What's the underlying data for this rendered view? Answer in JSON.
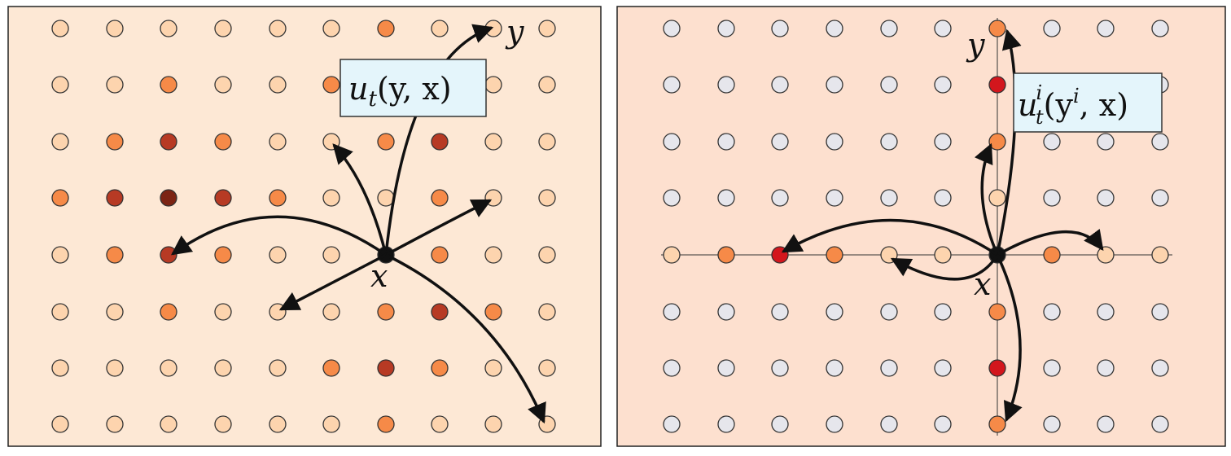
{
  "panels": [
    {
      "box_label": {
        "base": "u",
        "sub": "t",
        "args": "(y, x)"
      },
      "target_label": "y",
      "source_label": "x"
    },
    {
      "box_label": {
        "base": "u",
        "sub": "t",
        "sup": "i",
        "args_open": "(y",
        "args_sup": "i",
        "args_close": ", x)"
      },
      "target_label": "y",
      "source_label": "x"
    }
  ]
}
